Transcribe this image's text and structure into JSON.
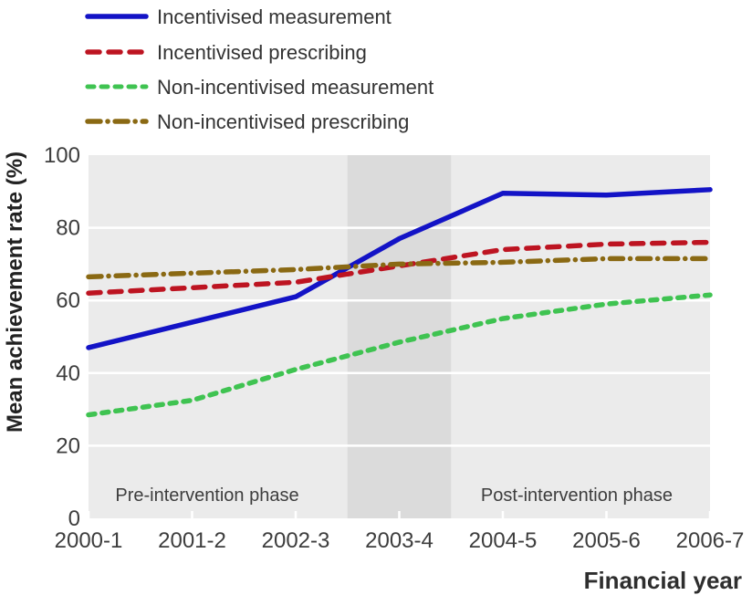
{
  "chart_data": {
    "type": "line",
    "title": "",
    "xlabel": "Financial year",
    "ylabel": "Mean achievement rate (%)",
    "categories": [
      "2000-1",
      "2001-2",
      "2002-3",
      "2003-4",
      "2004-5",
      "2005-6",
      "2006-7"
    ],
    "series": [
      {
        "name": "Incentivised measurement",
        "color": "#1313c6",
        "style": "solid",
        "values": [
          47,
          54,
          61,
          77,
          89.5,
          89,
          90.5
        ]
      },
      {
        "name": "Incentivised prescribing",
        "color": "#bd1421",
        "style": "dashed",
        "values": [
          62,
          63.5,
          65,
          69.5,
          74,
          75.5,
          76
        ]
      },
      {
        "name": "Non-incentivised measurement",
        "color": "#3fc351",
        "style": "short-dash",
        "values": [
          28.5,
          32.5,
          41,
          48.5,
          55,
          59,
          61.5
        ]
      },
      {
        "name": "Non-incentivised prescribing",
        "color": "#8a6913",
        "style": "dash-dot",
        "values": [
          66.5,
          67.5,
          68.5,
          70,
          70.5,
          71.5,
          71.5
        ]
      }
    ],
    "ylim": [
      0,
      100
    ],
    "yticks": [
      0,
      20,
      40,
      60,
      80,
      100
    ],
    "grid": "horizontal-white",
    "legend_position": "top-left",
    "plot_background": "#ebebeb",
    "gridline_color": "#ffffff",
    "band": {
      "label": "intervention period",
      "center_category": "2003-4",
      "half_width_categories": 0.5,
      "color": "#dbdbdb"
    },
    "annotations": [
      {
        "text": "Pre-intervention phase"
      },
      {
        "text": "Post-intervention phase"
      }
    ]
  }
}
